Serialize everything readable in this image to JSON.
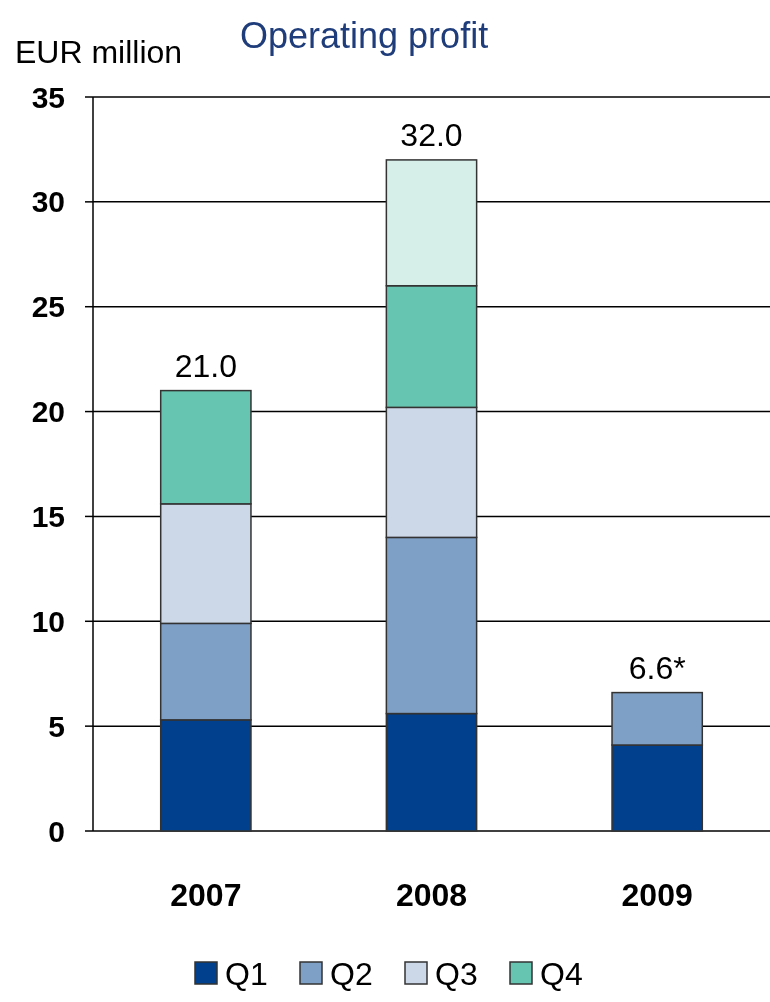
{
  "chart_data": {
    "type": "bar",
    "title": "Operating profit",
    "ylabel": "EUR million",
    "categories": [
      "2007",
      "2008",
      "2009"
    ],
    "stacked": true,
    "series": [
      {
        "name": "Q1",
        "color": "#00408c",
        "values": [
          5.3,
          5.6,
          4.1
        ]
      },
      {
        "name": "Q2",
        "color": "#7fa0c6",
        "values": [
          4.6,
          8.4,
          2.5
        ]
      },
      {
        "name": "Q3",
        "color": "#ccd8e8",
        "values": [
          5.7,
          6.2,
          null
        ]
      },
      {
        "name": "Q4",
        "color": "#66c5b0",
        "values": [
          5.4,
          5.8,
          null
        ]
      },
      {
        "color": "#d6efe9",
        "values": [
          null,
          6.0,
          null
        ]
      }
    ],
    "totals": [
      "21.0",
      "32.0",
      "6.6*"
    ],
    "ylim": [
      0,
      35
    ],
    "yticks": [
      0,
      5,
      10,
      15,
      20,
      25,
      30,
      35
    ],
    "grid": "y",
    "legend": "bottom"
  }
}
